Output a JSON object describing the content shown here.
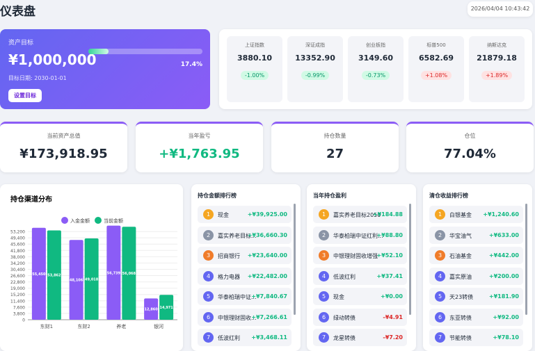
{
  "header": {
    "title": "仪表盘",
    "datetime": "2026/04/04 10:43:42"
  },
  "goal": {
    "label": "资产目标",
    "amount": "¥1,000,000",
    "progress": {
      "value": 17.4,
      "label": "17.4%"
    },
    "date_text": "目标日期: 2030-01-01",
    "button": "设置目标"
  },
  "indices": [
    {
      "name": "上证指数",
      "value": "3880.10",
      "change": "-1.00%"
    },
    {
      "name": "深证成指",
      "value": "13352.90",
      "change": "-0.99%"
    },
    {
      "name": "创业板指",
      "value": "3149.60",
      "change": "-0.73%"
    },
    {
      "name": "标普500",
      "value": "6582.69",
      "change": "+1.08%"
    },
    {
      "name": "纳斯达克",
      "value": "21879.18",
      "change": "+1.89%"
    }
  ],
  "stats": [
    {
      "label": "当前资产总值",
      "value": "¥173,918.95"
    },
    {
      "label": "当年盈亏",
      "value": "+¥1,763.95"
    },
    {
      "label": "持仓数量",
      "value": "27"
    },
    {
      "label": "仓位",
      "value": "77.04%"
    }
  ],
  "chart_data": {
    "type": "bar",
    "title": "持仓渠道分布",
    "categories": [
      "东财1",
      "东财2",
      "养老",
      "银河"
    ],
    "series": [
      {
        "name": "入金金额",
        "color": "#8b5cf6",
        "values": [
          55450,
          48106,
          56739,
          12860
        ],
        "value_labels": [
          "55,450",
          "48,106",
          "56,739",
          "12,860"
        ]
      },
      {
        "name": "当前金额",
        "color": "#10b981",
        "values": [
          53862,
          49018,
          56068,
          14971
        ],
        "value_labels": [
          "53,862",
          "49,018",
          "56,068",
          "14,971"
        ]
      }
    ],
    "ylim": [
      0,
      57000
    ],
    "yticks": [
      0,
      {
        "value": 3800,
        "label": "3,800"
      },
      {
        "value": 7600,
        "label": "7,600"
      },
      {
        "value": 11400,
        "label": "11,400"
      },
      {
        "value": 15200,
        "label": "15,200"
      },
      {
        "value": 19000,
        "label": "19,000"
      },
      {
        "value": 22800,
        "label": "22,800"
      },
      {
        "value": 26600,
        "label": "26,600"
      },
      {
        "value": 30400,
        "label": "30,400"
      },
      {
        "value": 34200,
        "label": "34,200"
      },
      {
        "value": 38000,
        "label": "38,000"
      },
      {
        "value": 41800,
        "label": "41,800"
      },
      {
        "value": 45600,
        "label": "45,600"
      },
      {
        "value": 49400,
        "label": "49,400"
      },
      {
        "value": 53200,
        "label": "53,200"
      }
    ],
    "legend": "top"
  },
  "lists": [
    {
      "title": "持仓金额排行榜",
      "items": [
        {
          "rank": 1,
          "name": "现金",
          "amount": "+¥39,925.00"
        },
        {
          "rank": 2,
          "name": "嘉实养老目标...",
          "amount": "+¥36,660.30"
        },
        {
          "rank": 3,
          "name": "招商银行",
          "amount": "+¥23,640.00"
        },
        {
          "rank": 4,
          "name": "格力电器",
          "amount": "+¥22,482.00"
        },
        {
          "rank": 5,
          "name": "华泰柏瑞中证...",
          "amount": "+¥7,840.67"
        },
        {
          "rank": 6,
          "name": "中银理财固收...",
          "amount": "+¥7,266.61"
        },
        {
          "rank": 7,
          "name": "低波红利",
          "amount": "+¥3,468.11"
        }
      ]
    },
    {
      "title": "当年持仓盈利",
      "items": [
        {
          "rank": 1,
          "name": "嘉实养老目标2050",
          "amount": "+¥184.88"
        },
        {
          "rank": 2,
          "name": "华泰柏瑞中证红利...",
          "amount": "+¥88.80"
        },
        {
          "rank": 3,
          "name": "中银理财固收增强",
          "amount": "+¥52.10"
        },
        {
          "rank": 4,
          "name": "低波红利",
          "amount": "+¥37.41"
        },
        {
          "rank": 5,
          "name": "现金",
          "amount": "+¥0.00"
        },
        {
          "rank": 6,
          "name": "绿动转债",
          "amount": "-¥4.91"
        },
        {
          "rank": 7,
          "name": "龙星转债",
          "amount": "-¥7.20"
        }
      ]
    },
    {
      "title": "清仓收益排行榜",
      "items": [
        {
          "rank": 1,
          "name": "白银基金",
          "amount": "+¥1,240.60"
        },
        {
          "rank": 2,
          "name": "华宝油气",
          "amount": "+¥633.00"
        },
        {
          "rank": 3,
          "name": "石油基金",
          "amount": "+¥442.00"
        },
        {
          "rank": 4,
          "name": "嘉实原油",
          "amount": "+¥200.00"
        },
        {
          "rank": 5,
          "name": "天23转债",
          "amount": "+¥181.90"
        },
        {
          "rank": 6,
          "name": "东亚转债",
          "amount": "+¥92.00"
        },
        {
          "rank": 7,
          "name": "节能转债",
          "amount": "+¥78.10"
        }
      ]
    }
  ]
}
